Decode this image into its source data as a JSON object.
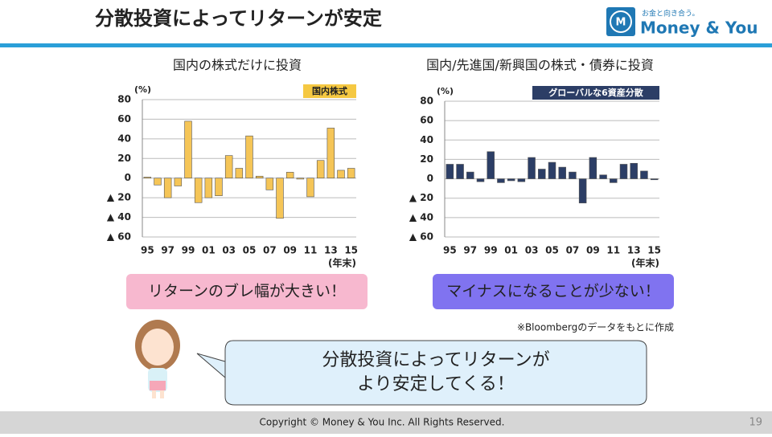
{
  "title": "分散投資によってリターンが安定",
  "logo": {
    "tagline": "お金と向き合う。",
    "name": "Money & You"
  },
  "chart_data": [
    {
      "type": "bar",
      "title": "国内の株式だけに投資",
      "badge": "国内株式",
      "y_unit": "(%)",
      "x_unit": "(年末)",
      "categories": [
        "95",
        null,
        "97",
        null,
        "99",
        null,
        "01",
        null,
        "03",
        null,
        "05",
        null,
        "07",
        null,
        "09",
        null,
        "11",
        null,
        "13",
        null,
        "15"
      ],
      "values": [
        1,
        -7,
        -20,
        -8,
        58,
        -25,
        -20,
        -18,
        23,
        10,
        43,
        2,
        -12,
        -41,
        6,
        -1,
        -19,
        18,
        51,
        8,
        10
      ],
      "color": "#f5c557",
      "badge_color": "#f5c842",
      "badge_text_color": "#222",
      "ylim": [
        -60,
        80
      ],
      "yticks": [
        80,
        60,
        40,
        20,
        0,
        {
          "value": -20,
          "label": "▲ 20"
        },
        {
          "value": -40,
          "label": "▲ 40"
        },
        {
          "value": -60,
          "label": "▲ 60"
        }
      ],
      "grid": true
    },
    {
      "type": "bar",
      "title": "国内/先進国/新興国の株式・債券に投資",
      "badge": "グローバルな6資産分散",
      "y_unit": "(%)",
      "x_unit": "(年末)",
      "categories": [
        "95",
        null,
        "97",
        null,
        "99",
        null,
        "01",
        null,
        "03",
        null,
        "05",
        null,
        "07",
        null,
        "09",
        null,
        "11",
        null,
        "13",
        null,
        "15"
      ],
      "values": [
        15,
        15,
        7,
        -3,
        28,
        -4,
        -2,
        -3,
        22,
        10,
        17,
        12,
        7,
        -25,
        22,
        4,
        -4,
        15,
        16,
        8,
        -1
      ],
      "color": "#2c3e66",
      "badge_color": "#2c3e66",
      "badge_text_color": "#fff",
      "ylim": [
        -60,
        80
      ],
      "yticks": [
        80,
        60,
        40,
        20,
        0,
        {
          "value": -20,
          "label": "▲ 20"
        },
        {
          "value": -40,
          "label": "▲ 40"
        },
        {
          "value": -60,
          "label": "▲ 60"
        }
      ],
      "grid": true
    }
  ],
  "callouts": [
    "リターンのブレ幅が大きい！",
    "マイナスになることが少ない！"
  ],
  "source": "※Bloombergのデータをもとに作成",
  "bubble": {
    "lines": [
      "分散投資によってリターンが",
      "より安定してくる！"
    ]
  },
  "footer": {
    "copyright": "Copyright © Money & You Inc. All Rights Reserved.",
    "page": "19"
  }
}
